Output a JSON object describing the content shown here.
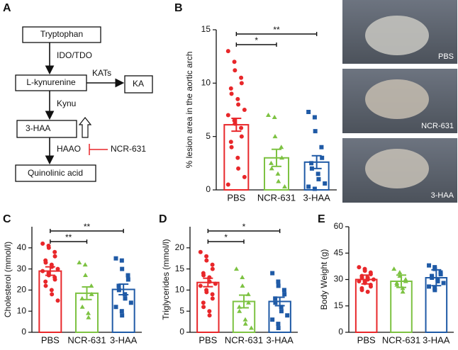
{
  "panel_labels": [
    "A",
    "B",
    "C",
    "D",
    "E"
  ],
  "pathway": {
    "nodes": [
      "Tryptophan",
      "L-kynurenine",
      "KA",
      "3-HAA",
      "Quinolinic acid"
    ],
    "edges": [
      "IDO/TDO",
      "KATs",
      "Kynu",
      "HAAO"
    ],
    "inhibitor": "NCR-631"
  },
  "photos": {
    "labels": [
      "PBS",
      "NCR-631",
      "3-HAA"
    ]
  },
  "chart_data": [
    {
      "type": "bar",
      "ylabel": "% lesion area  in the aortic arch",
      "categories": [
        "PBS",
        "NCR-631",
        "3-HAA"
      ],
      "colors": [
        "#e8272a",
        "#7dc242",
        "#1f5aa6"
      ],
      "markers": [
        "circle",
        "triangle",
        "square"
      ],
      "values": [
        6.1,
        3.0,
        2.6
      ],
      "errors": [
        0.6,
        0.8,
        0.6
      ],
      "points": [
        [
          13,
          12,
          11.2,
          10.5,
          10,
          9.5,
          9,
          8.5,
          8,
          7.5,
          7,
          6.5,
          6.2,
          5.8,
          5,
          4.5,
          4,
          3,
          2,
          1.2,
          0.5
        ],
        [
          7,
          6.8,
          5,
          4,
          3,
          2.5,
          2,
          1.5,
          0.8,
          0.3
        ],
        [
          7.3,
          6.8,
          5.5,
          4,
          3,
          2.5,
          2,
          1.5,
          1,
          0.6,
          0.3,
          0.1
        ]
      ],
      "ylim": [
        0,
        15
      ],
      "yticks": [
        0,
        5,
        10,
        15
      ],
      "annotations": [
        {
          "between": [
            0,
            2
          ],
          "label": "**"
        },
        {
          "between": [
            0,
            1
          ],
          "label": "*"
        }
      ]
    },
    {
      "type": "bar",
      "ylabel": "Cholesterol (mmol/l)",
      "categories": [
        "PBS",
        "NCR-631",
        "3-HAA"
      ],
      "colors": [
        "#e8272a",
        "#7dc242",
        "#1f5aa6"
      ],
      "markers": [
        "circle",
        "triangle",
        "square"
      ],
      "values": [
        29,
        18.5,
        20.3
      ],
      "errors": [
        2,
        3,
        2.5
      ],
      "points": [
        [
          42,
          41,
          40,
          38,
          36,
          34,
          33,
          32,
          31,
          30,
          29,
          28,
          27,
          26,
          25,
          24,
          22,
          20,
          18,
          15
        ],
        [
          33,
          32,
          27,
          22,
          18,
          16,
          12,
          9,
          7
        ],
        [
          35,
          34,
          30,
          27,
          25,
          22,
          20,
          18,
          16,
          14,
          12,
          10,
          8
        ]
      ],
      "ylim": [
        0,
        50
      ],
      "yticks": [
        0,
        10,
        20,
        30,
        40
      ],
      "annotations": [
        {
          "between": [
            0,
            2
          ],
          "label": "**"
        },
        {
          "between": [
            0,
            1
          ],
          "label": "**"
        }
      ]
    },
    {
      "type": "bar",
      "ylabel": "Triglycerides (mmol/l)",
      "categories": [
        "PBS",
        "NCR-631",
        "3-HAA"
      ],
      "colors": [
        "#e8272a",
        "#7dc242",
        "#1f5aa6"
      ],
      "markers": [
        "circle",
        "triangle",
        "square"
      ],
      "values": [
        11.8,
        7.3,
        7.3
      ],
      "errors": [
        1,
        1.5,
        1
      ],
      "points": [
        [
          19,
          18,
          17,
          16,
          15,
          14,
          13.5,
          13,
          12,
          11.5,
          11,
          10,
          9.5,
          9,
          8,
          7,
          6,
          5,
          4
        ],
        [
          15,
          13,
          11,
          9,
          7,
          6,
          5,
          3,
          2,
          1
        ],
        [
          14,
          12,
          11,
          10,
          9,
          8,
          7,
          6,
          5,
          4,
          3,
          2,
          1
        ]
      ],
      "ylim": [
        0,
        25
      ],
      "yticks": [
        0,
        5,
        10,
        15,
        20
      ],
      "annotations": [
        {
          "between": [
            0,
            2
          ],
          "label": "*"
        },
        {
          "between": [
            0,
            1
          ],
          "label": "*"
        }
      ]
    },
    {
      "type": "bar",
      "ylabel": "Body Weight (g)",
      "categories": [
        "PBS",
        "NCR-631",
        "3-HAA"
      ],
      "colors": [
        "#e8272a",
        "#7dc242",
        "#1f5aa6"
      ],
      "markers": [
        "circle",
        "triangle",
        "square"
      ],
      "values": [
        30,
        29,
        31
      ],
      "errors": [
        2.5,
        3.5,
        4.5
      ],
      "points": [
        [
          37,
          36,
          35,
          34,
          33,
          32,
          31,
          31,
          30,
          30,
          29,
          29,
          28,
          27,
          26,
          25,
          24,
          23
        ],
        [
          36,
          34,
          32,
          30,
          29,
          28,
          27,
          25,
          23
        ],
        [
          38,
          37,
          36,
          34,
          33,
          32,
          31,
          30,
          29,
          28,
          26,
          25,
          24
        ]
      ],
      "ylim": [
        0,
        60
      ],
      "yticks": [
        0,
        15,
        30,
        45,
        60
      ],
      "annotations": []
    }
  ]
}
